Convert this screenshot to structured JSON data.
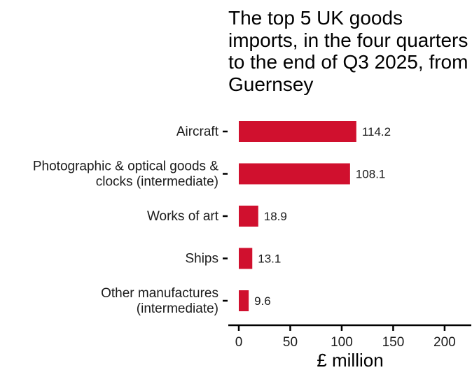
{
  "chart_data": {
    "type": "bar",
    "orientation": "horizontal",
    "title": "The top 5 UK goods imports, in the four quarters to the end of Q3 2025, from Guernsey",
    "categories": [
      [
        "Aircraft"
      ],
      [
        "Photographic & optical goods &",
        "clocks (intermediate)"
      ],
      [
        "Works of art"
      ],
      [
        "Ships"
      ],
      [
        "Other manufactures",
        "(intermediate)"
      ]
    ],
    "values": [
      114.2,
      108.1,
      18.9,
      13.1,
      9.6
    ],
    "value_labels": [
      "114.2",
      "108.1",
      "18.9",
      "13.1",
      "9.6"
    ],
    "xlabel": "£ million",
    "ylabel": "",
    "xlim": [
      0,
      225
    ],
    "x_ticks": [
      0,
      50,
      100,
      150,
      200
    ],
    "grid": false,
    "legend": "none",
    "colors": {
      "bar": "#d0102e",
      "text": "#1a1a1a",
      "axis": "#000000"
    }
  }
}
